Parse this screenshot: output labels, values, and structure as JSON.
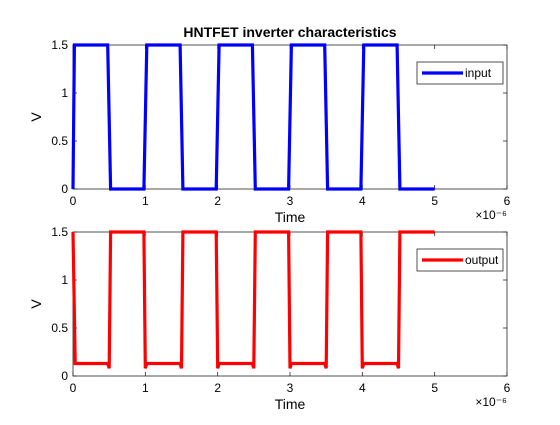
{
  "chart_data": [
    {
      "type": "line",
      "title": "HNTFET inverter characteristics",
      "xlabel": "Time",
      "ylabel": "V",
      "x_exponent_label": "×10⁻⁶",
      "xlim": [
        0,
        6
      ],
      "ylim": [
        0,
        1.5
      ],
      "xticks": [
        "0",
        "1",
        "2",
        "3",
        "4",
        "5",
        "6"
      ],
      "yticks": [
        "0",
        "0.5",
        "1",
        "1.5"
      ],
      "legend_position": "top-right",
      "series": [
        {
          "name": "input",
          "color": "#0000ff",
          "x": [
            0,
            0.02,
            0.48,
            0.52,
            0.98,
            1.02,
            1.48,
            1.52,
            1.98,
            2.02,
            2.48,
            2.52,
            2.98,
            3.02,
            3.48,
            3.52,
            3.98,
            4.02,
            4.48,
            4.52,
            5.0
          ],
          "y": [
            0,
            1.5,
            1.5,
            0,
            0,
            1.5,
            1.5,
            0,
            0,
            1.5,
            1.5,
            0,
            0,
            1.5,
            1.5,
            0,
            0,
            1.5,
            1.5,
            0,
            0
          ]
        }
      ]
    },
    {
      "type": "line",
      "title": "",
      "xlabel": "Time",
      "ylabel": "V",
      "x_exponent_label": "×10⁻⁶",
      "xlim": [
        0,
        6
      ],
      "ylim": [
        0,
        1.5
      ],
      "xticks": [
        "0",
        "1",
        "2",
        "3",
        "4",
        "5",
        "6"
      ],
      "yticks": [
        "0",
        "0.5",
        "1",
        "1.5"
      ],
      "legend_position": "top-right",
      "series": [
        {
          "name": "output",
          "color": "#ff0000",
          "x": [
            0,
            0.03,
            0.48,
            0.5,
            0.52,
            0.98,
            1.0,
            1.02,
            1.48,
            1.5,
            1.52,
            1.98,
            2.0,
            2.02,
            2.48,
            2.5,
            2.52,
            2.98,
            3.0,
            3.02,
            3.48,
            3.5,
            3.52,
            3.98,
            4.0,
            4.02,
            4.48,
            4.5,
            4.52,
            5.0
          ],
          "y": [
            1.5,
            0.13,
            0.13,
            0.08,
            1.5,
            1.5,
            0.08,
            0.13,
            0.13,
            0.08,
            1.5,
            1.5,
            0.08,
            0.13,
            0.13,
            0.08,
            1.5,
            1.5,
            0.08,
            0.13,
            0.13,
            0.08,
            1.5,
            1.5,
            0.08,
            0.13,
            0.13,
            0.08,
            1.5,
            1.5
          ]
        }
      ]
    }
  ]
}
